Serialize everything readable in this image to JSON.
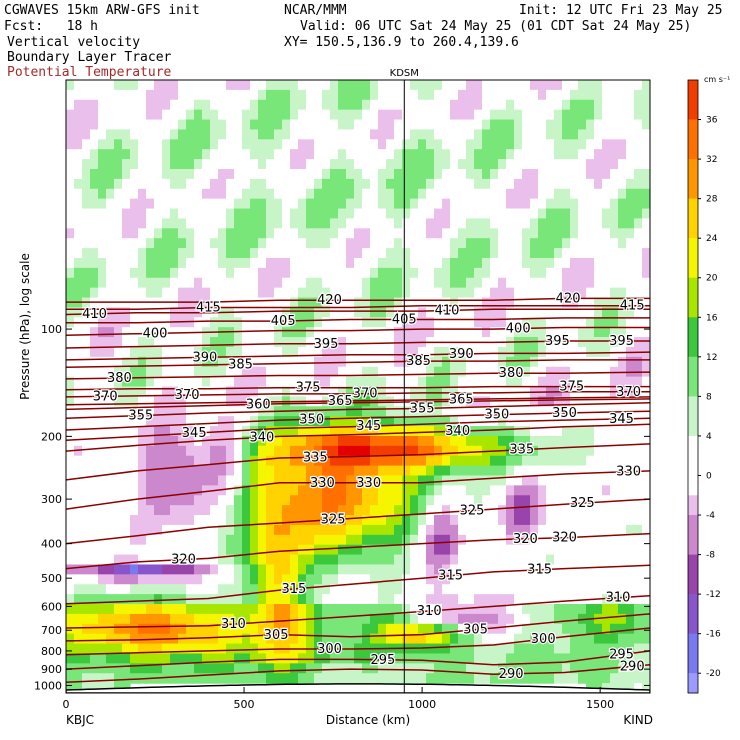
{
  "header": {
    "model": "CGWAVES 15km ARW-GFS init",
    "forecast": "Fcst:   18 h",
    "field1": "Vertical velocity",
    "field2": "Boundary Layer Tracer",
    "field3": "Potential Temperature",
    "org": "NCAR/MMM",
    "init": "Init: 12 UTC Fri 23 May 25",
    "valid": "Valid: 06 UTC Sat 24 May 25 (01 CDT Sat 24 May 25)",
    "xy": "XY= 150.5,136.9 to 260.4,139.6"
  },
  "colors": {
    "theta_contour": "#8b0000",
    "field3_text": "#a52a2a"
  },
  "chart_data": {
    "type": "heatmap",
    "marker_label": "KDSM",
    "marker_x_km": 950,
    "xlabel": "Distance (km)",
    "ylabel": "Pressure (hPa), log scale",
    "y_scale": "log",
    "xlim": [
      0,
      1640
    ],
    "ylim": [
      1050,
      20
    ],
    "x_ticks": [
      0,
      500,
      1000,
      1500
    ],
    "x_tick_labels": [
      "0",
      "500",
      "1000",
      "1500"
    ],
    "y_ticks": [
      100,
      200,
      300,
      400,
      500,
      600,
      700,
      800,
      900,
      1000
    ],
    "y_tick_labels": [
      "100",
      "200",
      "300",
      "400",
      "500",
      "600",
      "700",
      "800",
      "900",
      "1000"
    ],
    "left_endpoint": "KBJC",
    "right_endpoint": "KIND",
    "colorbar": {
      "unit": "cm s⁻¹",
      "ticks": [
        36,
        32,
        28,
        24,
        20,
        16,
        12,
        8,
        4,
        0,
        -4,
        -8,
        -12,
        -16,
        -20
      ],
      "tick_labels": [
        "36",
        "32",
        "28",
        "24",
        "20",
        "16",
        "12",
        "8",
        "4",
        "0",
        "-4",
        "-8",
        "-12",
        "-16",
        "-20"
      ],
      "min": -22,
      "max": 40,
      "stops": [
        {
          "v": 40,
          "c": "#e30000"
        },
        {
          "v": 36,
          "c": "#f23c00"
        },
        {
          "v": 32,
          "c": "#ff7000"
        },
        {
          "v": 28,
          "c": "#ff9600"
        },
        {
          "v": 24,
          "c": "#ffd200"
        },
        {
          "v": 20,
          "c": "#f5f500"
        },
        {
          "v": 16,
          "c": "#a8e600"
        },
        {
          "v": 12,
          "c": "#3cc83c"
        },
        {
          "v": 8,
          "c": "#78e678"
        },
        {
          "v": 4,
          "c": "#c8f5c8"
        },
        {
          "v": 2,
          "c": "#ffffff"
        },
        {
          "v": -2,
          "c": "#ffffff"
        },
        {
          "v": -4,
          "c": "#ebbfeb"
        },
        {
          "v": -8,
          "c": "#cc88cc"
        },
        {
          "v": -12,
          "c": "#9944aa"
        },
        {
          "v": -16,
          "c": "#8855cc"
        },
        {
          "v": -20,
          "c": "#7a7af0"
        },
        {
          "v": -22,
          "c": "#9b9bff"
        }
      ]
    },
    "isentropes": [
      {
        "theta": 290,
        "x": [
          0,
          200,
          400,
          600,
          800,
          1000,
          1200,
          1400,
          1640
        ],
        "p": [
          980,
          960,
          935,
          910,
          900,
          905,
          930,
          920,
          875
        ],
        "labels": [
          {
            "x": 1250
          },
          {
            "x": 1590
          }
        ]
      },
      {
        "theta": 295,
        "x": [
          0,
          200,
          400,
          600,
          800,
          1000,
          1200,
          1400,
          1640
        ],
        "p": [
          900,
          880,
          860,
          845,
          845,
          850,
          875,
          860,
          800
        ],
        "labels": [
          {
            "x": 890
          },
          {
            "x": 1560
          }
        ]
      },
      {
        "theta": 300,
        "x": [
          0,
          200,
          400,
          600,
          800,
          1000,
          1200,
          1400,
          1640
        ],
        "p": [
          820,
          810,
          800,
          790,
          790,
          785,
          770,
          730,
          690
        ],
        "labels": [
          {
            "x": 740
          },
          {
            "x": 1340
          }
        ]
      },
      {
        "theta": 305,
        "x": [
          0,
          200,
          400,
          600,
          800,
          1000,
          1200,
          1400,
          1640
        ],
        "p": [
          750,
          745,
          735,
          720,
          730,
          720,
          690,
          660,
          630
        ],
        "labels": [
          {
            "x": 590
          },
          {
            "x": 1150
          }
        ]
      },
      {
        "theta": 310,
        "x": [
          0,
          200,
          400,
          600,
          800,
          1000,
          1200,
          1400,
          1640
        ],
        "p": [
          690,
          685,
          680,
          660,
          640,
          620,
          600,
          580,
          560
        ],
        "labels": [
          {
            "x": 470
          },
          {
            "x": 1020
          },
          {
            "x": 1550
          }
        ]
      },
      {
        "theta": 315,
        "x": [
          0,
          200,
          400,
          600,
          800,
          1000,
          1200,
          1400,
          1640
        ],
        "p": [
          590,
          580,
          570,
          540,
          520,
          500,
          480,
          470,
          460
        ],
        "labels": [
          {
            "x": 640
          },
          {
            "x": 1080
          },
          {
            "x": 1330
          }
        ]
      },
      {
        "theta": 320,
        "x": [
          0,
          200,
          400,
          600,
          800,
          1000,
          1200,
          1400,
          1640
        ],
        "p": [
          470,
          450,
          440,
          420,
          410,
          400,
          390,
          385,
          375
        ],
        "labels": [
          {
            "x": 330
          },
          {
            "x": 1290
          },
          {
            "x": 1400
          }
        ]
      },
      {
        "theta": 325,
        "x": [
          0,
          200,
          400,
          600,
          800,
          1000,
          1200,
          1400,
          1640
        ],
        "p": [
          400,
          380,
          360,
          350,
          340,
          330,
          320,
          310,
          300
        ],
        "labels": [
          {
            "x": 750
          },
          {
            "x": 1140
          },
          {
            "x": 1450
          }
        ]
      },
      {
        "theta": 330,
        "x": [
          0,
          200,
          400,
          600,
          800,
          1000,
          1200,
          1400,
          1640
        ],
        "p": [
          320,
          300,
          285,
          270,
          270,
          270,
          262,
          255,
          250
        ],
        "labels": [
          {
            "x": 720
          },
          {
            "x": 850
          },
          {
            "x": 1580
          }
        ]
      },
      {
        "theta": 335,
        "x": [
          0,
          200,
          400,
          600,
          800,
          1000,
          1200,
          1400,
          1640
        ],
        "p": [
          265,
          250,
          240,
          230,
          228,
          225,
          220,
          215,
          210
        ],
        "labels": [
          {
            "x": 700
          },
          {
            "x": 1280
          }
        ]
      },
      {
        "theta": 340,
        "x": [
          0,
          200,
          400,
          600,
          800,
          1000,
          1200,
          1400,
          1640
        ],
        "p": [
          220,
          212,
          205,
          200,
          198,
          195,
          192,
          188,
          185
        ],
        "labels": [
          {
            "x": 550
          },
          {
            "x": 1100
          }
        ]
      },
      {
        "theta": 345,
        "x": [
          0,
          200,
          400,
          600,
          800,
          1000,
          1200,
          1400,
          1640
        ],
        "p": [
          205,
          200,
          195,
          190,
          188,
          185,
          182,
          180,
          178
        ],
        "labels": [
          {
            "x": 360
          },
          {
            "x": 850
          },
          {
            "x": 1560
          }
        ]
      },
      {
        "theta": 350,
        "x": [
          0,
          200,
          400,
          600,
          800,
          1000,
          1200,
          1400,
          1640
        ],
        "p": [
          192,
          188,
          184,
          180,
          178,
          176,
          174,
          172,
          170
        ],
        "labels": [
          {
            "x": 690
          },
          {
            "x": 1210
          },
          {
            "x": 1400
          }
        ]
      },
      {
        "theta": 355,
        "x": [
          0,
          200,
          400,
          600,
          800,
          1000,
          1200,
          1400,
          1640
        ],
        "p": [
          178,
          175,
          172,
          170,
          168,
          167,
          165,
          163,
          161
        ],
        "labels": [
          {
            "x": 210
          },
          {
            "x": 1000
          }
        ]
      },
      {
        "theta": 360,
        "x": [
          0,
          200,
          400,
          600,
          800,
          1000,
          1200,
          1400,
          1640
        ],
        "p": [
          168,
          166,
          164,
          162,
          161,
          160,
          159,
          158,
          157
        ],
        "labels": [
          {
            "x": 540
          }
        ]
      },
      {
        "theta": 365,
        "x": [
          0,
          200,
          400,
          600,
          800,
          1000,
          1200,
          1400,
          1640
        ],
        "p": [
          163,
          162,
          161,
          160,
          159,
          158,
          157,
          156,
          155
        ],
        "labels": [
          {
            "x": 1110
          },
          {
            "x": 770
          }
        ]
      },
      {
        "theta": 370,
        "x": [
          0,
          200,
          400,
          600,
          800,
          1000,
          1200,
          1400,
          1640
        ],
        "p": [
          155,
          154,
          153,
          152,
          152,
          151,
          151,
          150,
          150
        ],
        "labels": [
          {
            "x": 110
          },
          {
            "x": 340
          },
          {
            "x": 840
          },
          {
            "x": 1580
          }
        ]
      },
      {
        "theta": 375,
        "x": [
          0,
          200,
          400,
          600,
          800,
          1000,
          1200,
          1400,
          1640
        ],
        "p": [
          148,
          147,
          147,
          146,
          146,
          146,
          145,
          145,
          145
        ],
        "labels": [
          {
            "x": 680
          },
          {
            "x": 1420
          }
        ]
      },
      {
        "theta": 380,
        "x": [
          0,
          200,
          400,
          600,
          800,
          1000,
          1200,
          1400,
          1640
        ],
        "p": [
          138,
          137,
          136,
          135,
          135,
          134,
          133,
          133,
          132
        ],
        "labels": [
          {
            "x": 150
          },
          {
            "x": 1250
          }
        ]
      },
      {
        "theta": 385,
        "x": [
          0,
          200,
          400,
          600,
          800,
          1000,
          1200,
          1400,
          1640
        ],
        "p": [
          128,
          127,
          126,
          125,
          124,
          123,
          123,
          122,
          122
        ],
        "labels": [
          {
            "x": 490
          },
          {
            "x": 990
          }
        ]
      },
      {
        "theta": 390,
        "x": [
          0,
          200,
          400,
          600,
          800,
          1000,
          1200,
          1400,
          1640
        ],
        "p": [
          122,
          121,
          120,
          119,
          118,
          118,
          117,
          117,
          116
        ],
        "labels": [
          {
            "x": 390
          },
          {
            "x": 1110
          }
        ]
      },
      {
        "theta": 395,
        "x": [
          0,
          200,
          400,
          600,
          800,
          1000,
          1200,
          1400,
          1640
        ],
        "p": [
          113,
          112,
          111,
          110,
          110,
          109,
          109,
          108,
          108
        ],
        "labels": [
          {
            "x": 730
          },
          {
            "x": 1380
          },
          {
            "x": 1560
          }
        ]
      },
      {
        "theta": 400,
        "x": [
          0,
          200,
          400,
          600,
          800,
          1000,
          1200,
          1400,
          1640
        ],
        "p": [
          104,
          103,
          102,
          101,
          101,
          100,
          100,
          99,
          99
        ],
        "labels": [
          {
            "x": 250
          },
          {
            "x": 1270
          }
        ]
      },
      {
        "theta": 405,
        "x": [
          0,
          200,
          400,
          600,
          800,
          1000,
          1200,
          1400,
          1640
        ],
        "p": [
          96,
          96,
          95,
          95,
          94,
          94,
          94,
          93,
          93
        ],
        "labels": [
          {
            "x": 610
          },
          {
            "x": 950
          }
        ]
      },
      {
        "theta": 410,
        "x": [
          0,
          200,
          400,
          600,
          800,
          1000,
          1200,
          1400,
          1640
        ],
        "p": [
          91,
          90,
          90,
          89,
          89,
          89,
          88,
          88,
          88
        ],
        "labels": [
          {
            "x": 80
          },
          {
            "x": 1070
          }
        ]
      },
      {
        "theta": 415,
        "x": [
          0,
          200,
          400,
          600,
          800,
          1000,
          1200,
          1400,
          1640
        ],
        "p": [
          88,
          88,
          87,
          87,
          87,
          86,
          86,
          86,
          86
        ],
        "labels": [
          {
            "x": 400
          },
          {
            "x": 1590
          }
        ]
      },
      {
        "theta": 420,
        "x": [
          0,
          200,
          400,
          600,
          800,
          1000,
          1200,
          1400,
          1640
        ],
        "p": [
          84,
          84,
          84,
          83,
          83,
          83,
          83,
          82,
          82
        ],
        "labels": [
          {
            "x": 740
          },
          {
            "x": 1410
          }
        ]
      }
    ],
    "w_features": [
      {
        "x": 730,
        "p": 290,
        "rx": 260,
        "rp": 0.42,
        "w": 30
      },
      {
        "x": 950,
        "p": 215,
        "rx": 300,
        "rp": 0.14,
        "w": 28
      },
      {
        "x": 600,
        "p": 560,
        "rx": 70,
        "rp": 0.45,
        "w": 22
      },
      {
        "x": 1120,
        "p": 650,
        "rx": 140,
        "rp": 0.12,
        "w": -16
      },
      {
        "x": 1000,
        "p": 720,
        "rx": 120,
        "rp": 0.08,
        "w": 24
      },
      {
        "x": 230,
        "p": 480,
        "rx": 200,
        "rp": 0.05,
        "w": -20
      },
      {
        "x": 320,
        "p": 260,
        "rx": 110,
        "rp": 0.3,
        "w": -14
      },
      {
        "x": 450,
        "p": 230,
        "rx": 60,
        "rp": 0.25,
        "w": -12
      },
      {
        "x": 1050,
        "p": 380,
        "rx": 60,
        "rp": 0.3,
        "w": -12
      },
      {
        "x": 1280,
        "p": 320,
        "rx": 50,
        "rp": 0.2,
        "w": -10
      },
      {
        "x": 1500,
        "p": 640,
        "rx": 100,
        "rp": 0.12,
        "w": 10
      },
      {
        "x": 800,
        "p": 820,
        "rx": 250,
        "rp": 0.05,
        "w": 6
      },
      {
        "x": 250,
        "p": 700,
        "rx": 260,
        "rp": 0.18,
        "w": 26
      },
      {
        "x": 750,
        "p": 40,
        "rx": 900,
        "rp": 0.9,
        "w": 3
      }
    ]
  }
}
